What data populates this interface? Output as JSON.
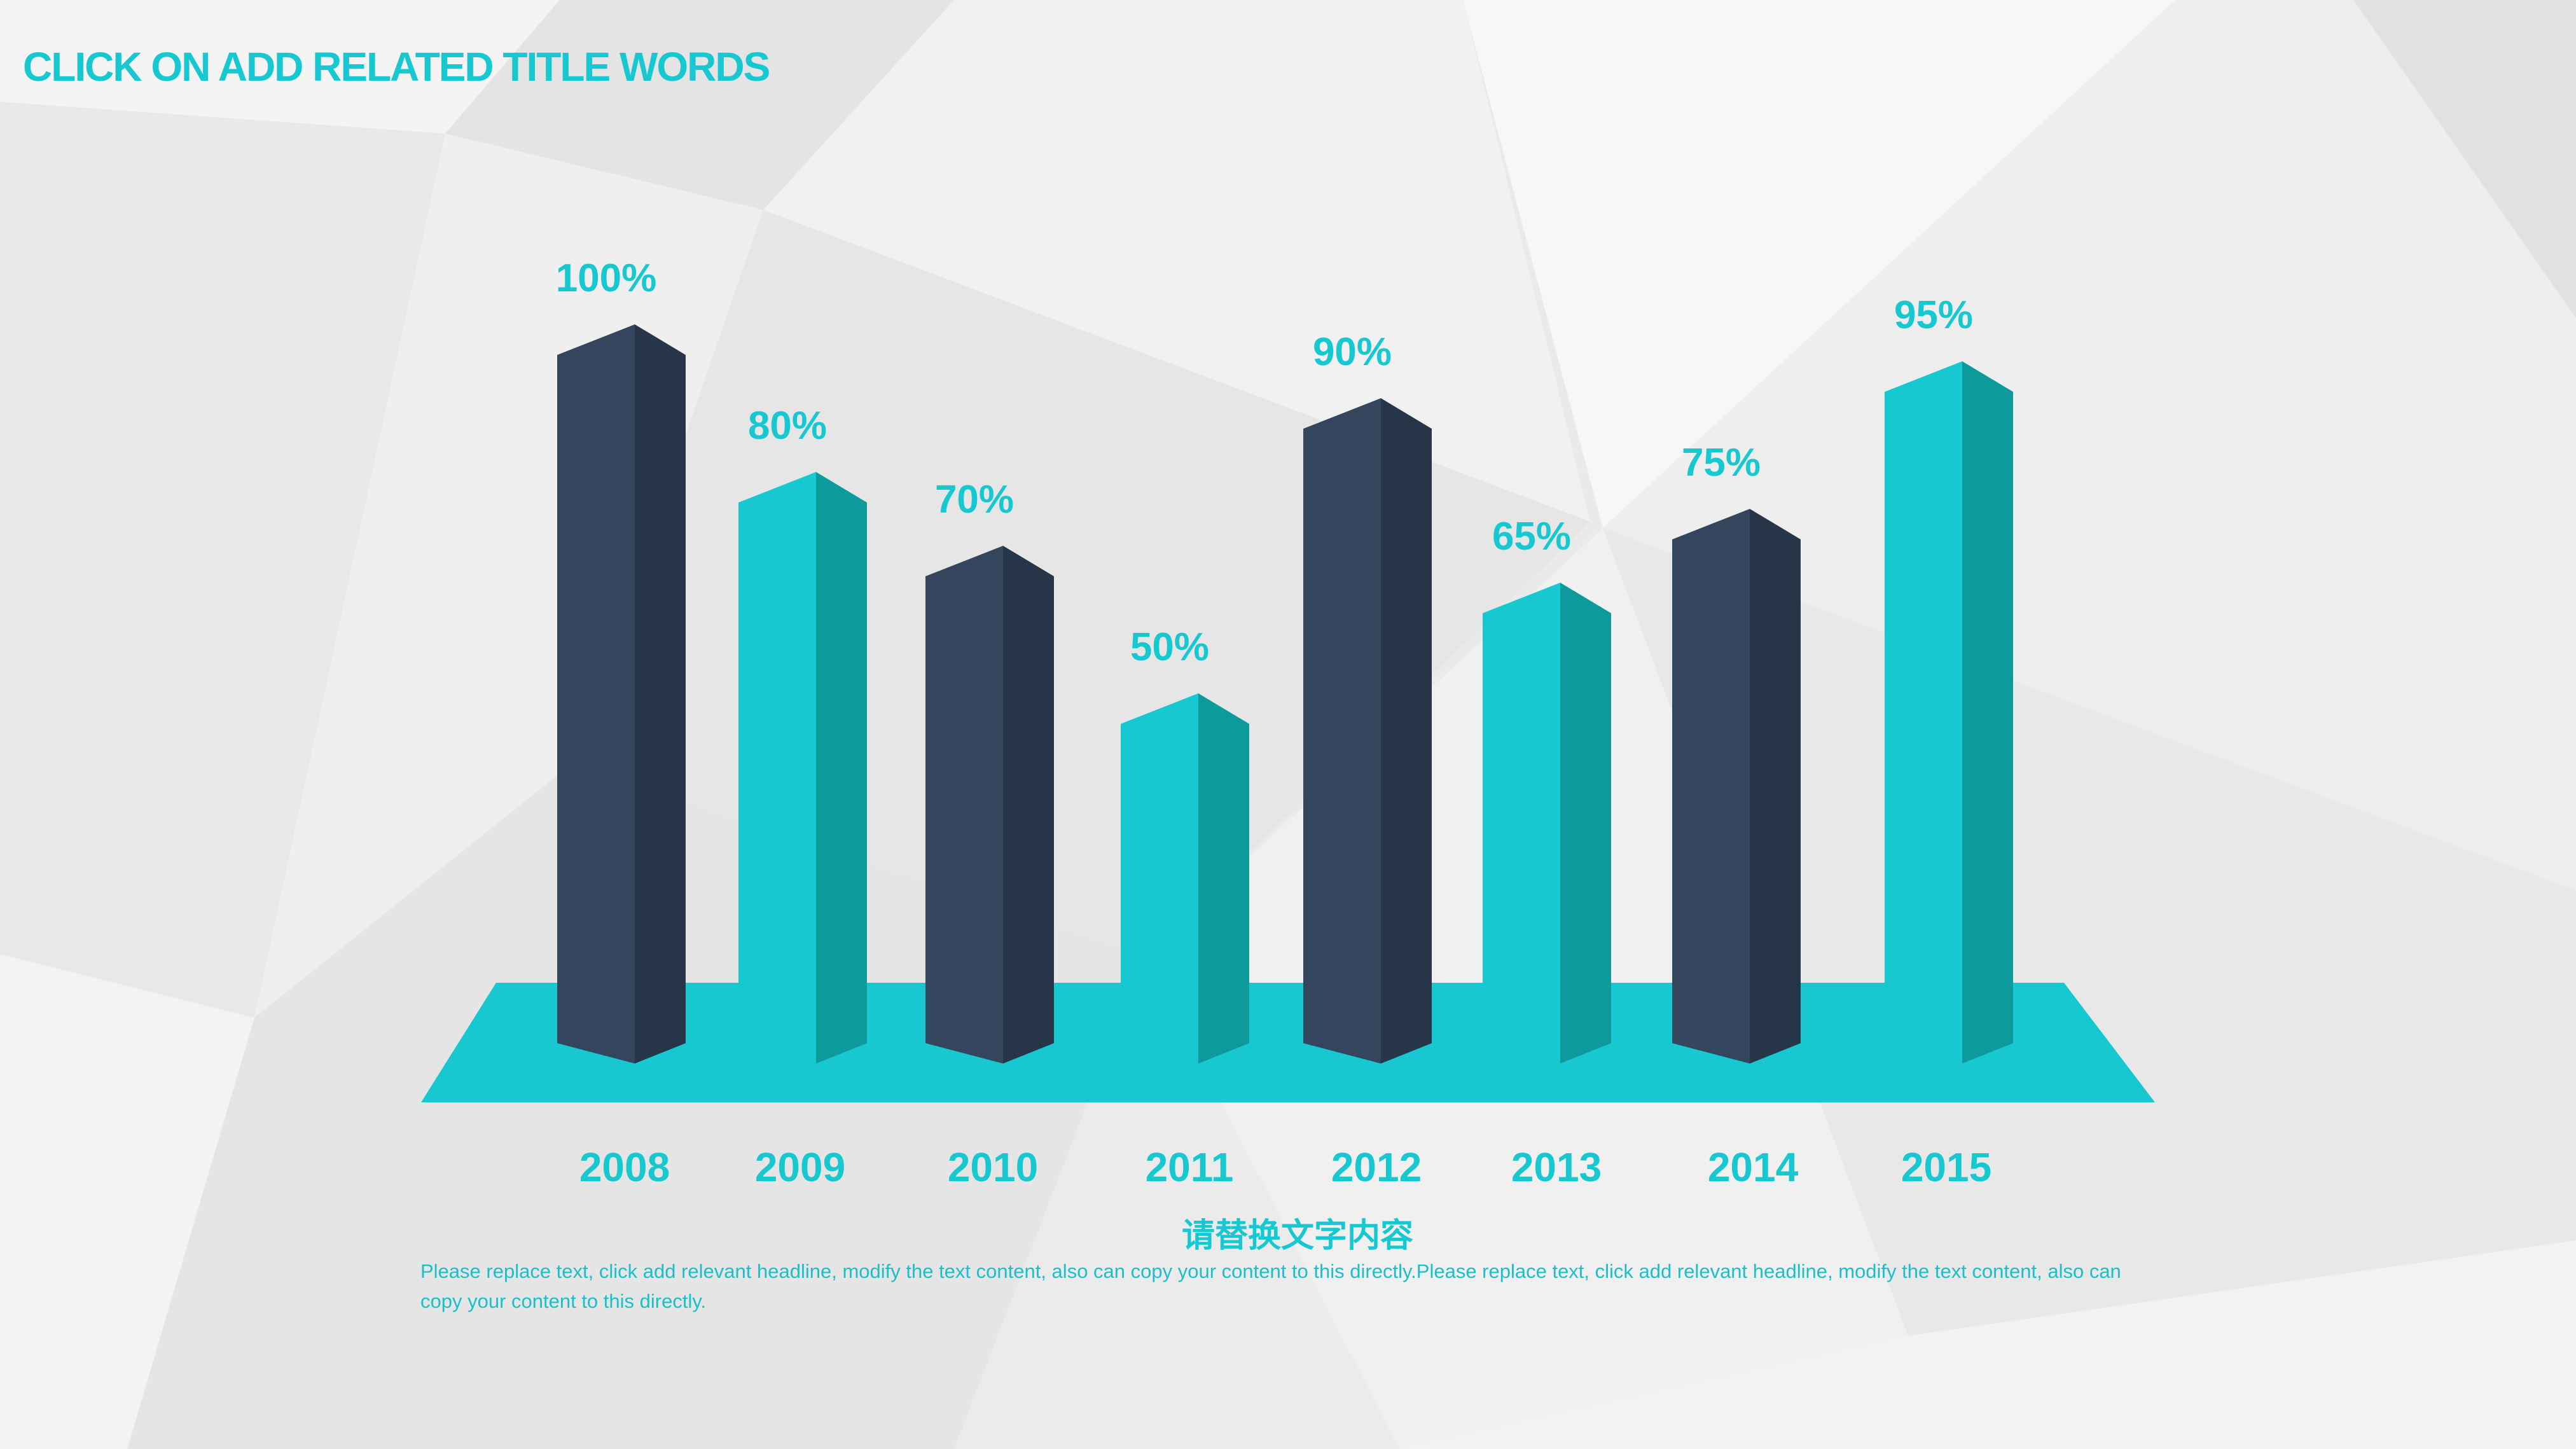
{
  "title": "CLICK ON ADD RELATED TITLE WORDS",
  "colors": {
    "accent": "#17c8d0",
    "accent_side": "#0d9a9a",
    "dark_front": "#34465e",
    "dark_side": "#263547",
    "text_body": "#1abfc8",
    "background": "#ececec"
  },
  "chart_data": {
    "type": "bar",
    "categories": [
      "2008",
      "2009",
      "2010",
      "2011",
      "2012",
      "2013",
      "2014",
      "2015"
    ],
    "values": [
      100,
      80,
      70,
      50,
      90,
      65,
      75,
      95
    ],
    "value_labels": [
      "100%",
      "80%",
      "70%",
      "50%",
      "90%",
      "65%",
      "75%",
      "95%"
    ],
    "bar_styles": [
      "dark",
      "teal",
      "dark",
      "teal",
      "dark",
      "teal",
      "dark",
      "teal"
    ],
    "title": "",
    "xlabel": "",
    "ylabel": "",
    "ylim": [
      0,
      100
    ],
    "grid": false,
    "legend": "none"
  },
  "caption": {
    "heading": "请替换文字内容",
    "body": "Please replace text, click add relevant headline, modify the text content, also can copy your content to this directly.Please replace text, click add relevant headline, modify the text content, also can copy your content to this directly."
  }
}
